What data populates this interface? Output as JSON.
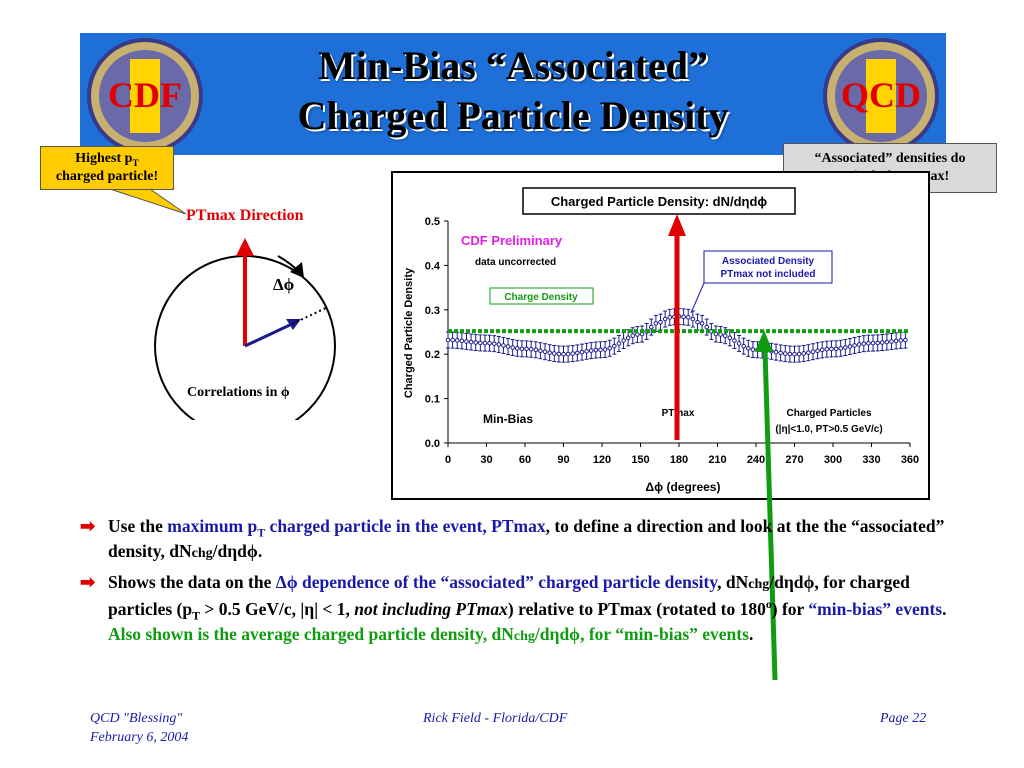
{
  "slide": {
    "title_line1": "Min-Bias “Associated”",
    "title_line2": "Charged Particle Density",
    "logo_left_text": "CDF",
    "logo_right_text": "QCD"
  },
  "callouts": {
    "left_line1": "Highest p",
    "left_sub": "T",
    "left_line2": "charged particle!",
    "right_line1": "“Associated” densities do",
    "right_line2": "not include PTmax!"
  },
  "diagram": {
    "ptmax_direction": "PTmax Direction",
    "dphi_symbol": "Δϕ",
    "correlations": "Correlations in ϕ"
  },
  "chart_data": {
    "type": "scatter",
    "title": "Charged Particle Density: dN/dηdϕ",
    "xlabel": "Δϕ  (degrees)",
    "ylabel": "Charged Particle Density",
    "xlim": [
      0,
      360
    ],
    "ylim": [
      0,
      0.5
    ],
    "x_ticks": [
      "0",
      "30",
      "60",
      "90",
      "120",
      "150",
      "180",
      "210",
      "240",
      "270",
      "300",
      "330",
      "360"
    ],
    "y_ticks": [
      "0.0",
      "0.1",
      "0.2",
      "0.3",
      "0.4",
      "0.5"
    ],
    "grid": false,
    "annotations": {
      "preliminary": "CDF Preliminary",
      "uncorrected": "data uncorrected",
      "charge_density": "Charge Density",
      "assoc_line1": "Associated Density",
      "assoc_line2": "PTmax not included",
      "minbias": "Min-Bias",
      "ptmax": "PTmax",
      "cp_line1": "Charged Particles",
      "cp_line2": "(|η|<1.0, PT>0.5 GeV/c)"
    },
    "series": [
      {
        "name": "Associated Density",
        "color": "#1a1a8c",
        "x": [
          0,
          30,
          60,
          90,
          120,
          150,
          165,
          172,
          180,
          188,
          195,
          210,
          240,
          270,
          300,
          330,
          360
        ],
        "values": [
          0.232,
          0.225,
          0.212,
          0.2,
          0.21,
          0.245,
          0.272,
          0.283,
          0.285,
          0.283,
          0.272,
          0.245,
          0.21,
          0.2,
          0.212,
          0.225,
          0.232
        ],
        "error": 0.018
      },
      {
        "name": "Charge Density",
        "color": "#109c10",
        "x": [
          0,
          360
        ],
        "values": [
          0.252,
          0.252
        ]
      }
    ]
  },
  "bullets": {
    "b1_p1": "Use the ",
    "b1_p2": "maximum p",
    "b1_p2_sub": "T",
    "b1_p3": " charged particle in the event, PTmax",
    "b1_p4": ", to define a direction and look at the the “associated” density, dN",
    "b1_chg": "chg",
    "b1_p5": "/dηdϕ.",
    "b2_p1": "Shows the data on the ",
    "b2_p2": "Δϕ dependence of the “associated” charged particle density",
    "b2_p3": ", dN",
    "b2_chg": "chg",
    "b2_p4": "/dηdϕ, for charged particles (p",
    "b2_sub": "T",
    "b2_p5": " > 0.5 GeV/c, |η| < 1, ",
    "b2_it": "not including PTmax",
    "b2_p6": ") relative to PTmax (rotated to 180",
    "b2_sup": "o",
    "b2_p7": ") for ",
    "b2_p8": "“min-bias” events",
    "b2_p9": ".  ",
    "b2_green1": "Also shown is the average charged particle density, dN",
    "b2_green_chg": "chg",
    "b2_green2": "/dηdϕ, for “min-bias” events",
    "b2_end": "."
  },
  "footer": {
    "left_line1": "QCD \"Blessing\"",
    "left_line2": "February 6, 2004",
    "center": "Rick Field - Florida/CDF",
    "right": "Page 22"
  }
}
